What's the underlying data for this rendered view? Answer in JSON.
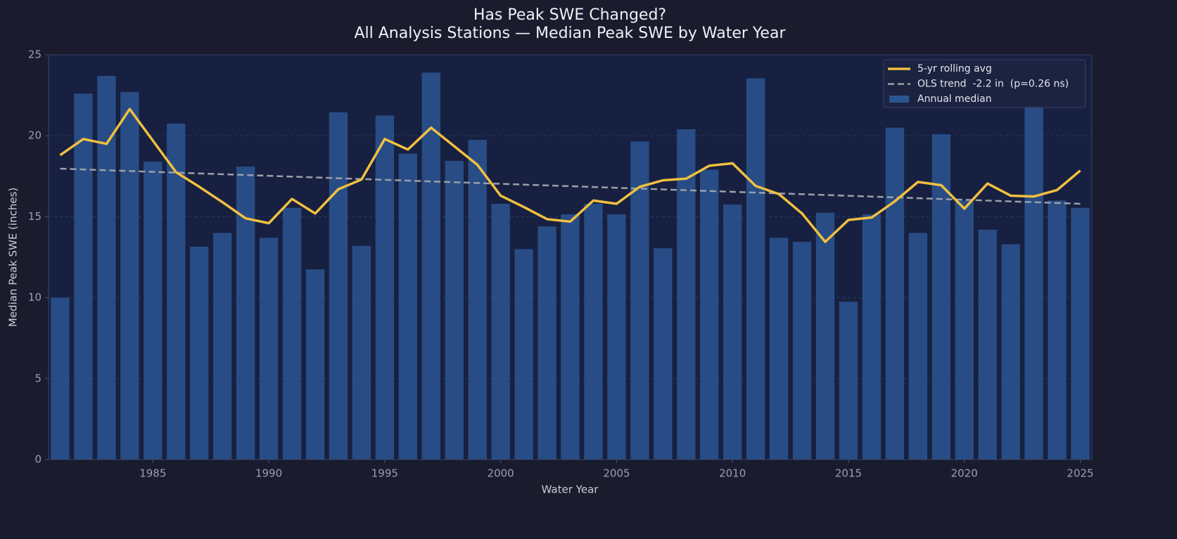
{
  "chart_data": {
    "type": "bar",
    "title": "Has Peak SWE Changed?",
    "subtitle": "All Analysis Stations — Median Peak SWE by Water Year",
    "x_label": "Water Year",
    "y_label": "Median Peak SWE (inches)",
    "x": [
      1981,
      1982,
      1983,
      1984,
      1985,
      1986,
      1987,
      1988,
      1989,
      1990,
      1991,
      1992,
      1993,
      1994,
      1995,
      1996,
      1997,
      1998,
      1999,
      2000,
      2001,
      2002,
      2003,
      2004,
      2005,
      2006,
      2007,
      2008,
      2009,
      2010,
      2011,
      2012,
      2013,
      2014,
      2015,
      2016,
      2017,
      2018,
      2019,
      2020,
      2021,
      2022,
      2023,
      2024,
      2025
    ],
    "series": [
      {
        "name": "5-yr rolling avg",
        "type": "line",
        "color": "#f0c040",
        "values": [
          18.8,
          19.8,
          19.5,
          21.65,
          19.7,
          17.75,
          16.85,
          15.9,
          14.9,
          14.6,
          16.1,
          15.2,
          16.7,
          17.3,
          19.8,
          19.15,
          20.5,
          19.35,
          18.2,
          16.3,
          15.6,
          14.85,
          14.7,
          16.0,
          15.8,
          16.85,
          17.25,
          17.35,
          18.15,
          18.3,
          16.9,
          16.4,
          15.2,
          13.45,
          14.8,
          14.95,
          15.95,
          17.15,
          16.95,
          15.5,
          17.05,
          16.3,
          16.25,
          16.65,
          17.85
        ]
      },
      {
        "name": "OLS trend  -2.2 in  (p=0.26 ns)",
        "type": "line",
        "dashed": true,
        "color": "#9aa0a8",
        "x": [
          1981,
          2025
        ],
        "values": [
          17.97,
          15.8
        ]
      },
      {
        "name": "Annual median",
        "type": "bar",
        "color": "#2b5592",
        "values": [
          10.0,
          22.6,
          23.7,
          22.7,
          18.4,
          20.75,
          13.15,
          14.0,
          18.1,
          13.7,
          15.55,
          11.75,
          21.45,
          13.2,
          21.25,
          18.9,
          23.9,
          18.45,
          19.75,
          15.8,
          13.0,
          14.4,
          15.15,
          15.8,
          15.15,
          19.65,
          13.05,
          20.4,
          17.9,
          15.75,
          23.55,
          13.7,
          13.45,
          15.25,
          9.75,
          15.15,
          20.5,
          14.0,
          20.1,
          16.0,
          14.2,
          13.3,
          21.9,
          16.0,
          15.55
        ]
      }
    ],
    "xlim": [
      1980.5,
      2025.5
    ],
    "xticks": [
      1985,
      1990,
      1995,
      2000,
      2005,
      2010,
      2015,
      2020,
      2025
    ],
    "ylim": [
      0,
      25
    ],
    "yticks": [
      0,
      5,
      10,
      15,
      20,
      25
    ],
    "grid": true,
    "legend": "upper right"
  }
}
